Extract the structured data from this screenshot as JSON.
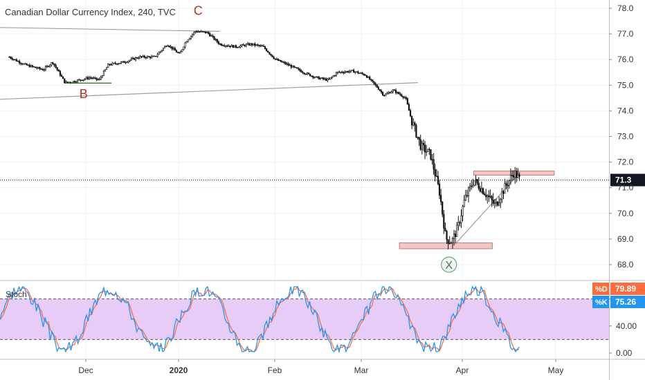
{
  "header": {
    "title": "Canadian Dollar Currency Index, 240, TVC"
  },
  "chart_data": {
    "type": "candlestick",
    "title": "Canadian Dollar Currency Index, 240, TVC",
    "x_ticks": [
      "Dec",
      "2020",
      "Feb",
      "Mar",
      "Apr",
      "May"
    ],
    "price_panel": {
      "y_ticks": [
        "78.0",
        "77.0",
        "76.0",
        "75.0",
        "74.0",
        "73.0",
        "72.0",
        "71.0",
        "70.0",
        "69.0",
        "68.0"
      ],
      "ylim": [
        67.6,
        78.3
      ],
      "last_price": "71.3",
      "price_path": [
        [
          "2019-11-01",
          76.1
        ],
        [
          "2019-11-06",
          75.8
        ],
        [
          "2019-11-12",
          75.6
        ],
        [
          "2019-11-15",
          75.9
        ],
        [
          "2019-11-19",
          75.1
        ],
        [
          "2019-11-22",
          75.15
        ],
        [
          "2019-11-27",
          75.3
        ],
        [
          "2019-11-30",
          75.2
        ],
        [
          "2019-12-03",
          75.8
        ],
        [
          "2019-12-08",
          75.9
        ],
        [
          "2019-12-13",
          76.1
        ],
        [
          "2019-12-18",
          76.1
        ],
        [
          "2019-12-22",
          76.6
        ],
        [
          "2019-12-26",
          76.2
        ],
        [
          "2019-12-28",
          76.7
        ],
        [
          "2019-12-31",
          77.1
        ],
        [
          "2020-01-04",
          77.05
        ],
        [
          "2020-01-08",
          76.6
        ],
        [
          "2020-01-13",
          76.5
        ],
        [
          "2020-01-18",
          76.6
        ],
        [
          "2020-01-22",
          76.5
        ],
        [
          "2020-01-26",
          76.0
        ],
        [
          "2020-01-30",
          75.8
        ],
        [
          "2020-02-04",
          75.5
        ],
        [
          "2020-02-08",
          75.3
        ],
        [
          "2020-02-12",
          75.2
        ],
        [
          "2020-02-15",
          75.5
        ],
        [
          "2020-02-20",
          75.55
        ],
        [
          "2020-02-24",
          75.4
        ],
        [
          "2020-02-28",
          74.9
        ],
        [
          "2020-03-01",
          74.6
        ],
        [
          "2020-03-04",
          74.8
        ],
        [
          "2020-03-08",
          74.5
        ],
        [
          "2020-03-10",
          73.6
        ],
        [
          "2020-03-13",
          72.6
        ],
        [
          "2020-03-16",
          72.3
        ],
        [
          "2020-03-19",
          70.8
        ],
        [
          "2020-03-21",
          69.0
        ],
        [
          "2020-03-23",
          68.9
        ],
        [
          "2020-03-25",
          69.5
        ],
        [
          "2020-03-27",
          70.5
        ],
        [
          "2020-03-30",
          71.3
        ],
        [
          "2020-04-02",
          70.9
        ],
        [
          "2020-04-06",
          70.3
        ],
        [
          "2020-04-09",
          71.0
        ],
        [
          "2020-04-12",
          71.6
        ],
        [
          "2020-04-14",
          71.3
        ]
      ],
      "annotations": [
        {
          "label": "C",
          "date": "2020-01-01",
          "price": 77.75
        },
        {
          "label": "B",
          "date": "2019-11-25",
          "price": 74.5
        },
        {
          "label": "X",
          "date": "2020-03-22",
          "price": 68.0
        }
      ],
      "trend_lines": [
        {
          "from": [
            "2019-10-29",
            77.25
          ],
          "to": [
            "2020-01-08",
            77.1
          ]
        },
        {
          "from": [
            "2019-10-29",
            74.45
          ],
          "to": [
            "2020-03-12",
            75.1
          ]
        },
        {
          "from": [
            "2020-03-24",
            68.8
          ],
          "to": [
            "2020-04-14",
            71.6
          ]
        }
      ],
      "zones": [
        {
          "from": "2020-03-06",
          "to": "2020-04-05",
          "low": 68.62,
          "high": 68.85
        },
        {
          "from": "2020-03-30",
          "to": "2020-04-25",
          "low": 71.53,
          "high": 71.65
        }
      ]
    },
    "stoch_panel": {
      "label": "Stoch",
      "y_ticks": [
        "80.00",
        "40.00",
        "0.00"
      ],
      "ylim": [
        -8,
        108
      ],
      "band": [
        20,
        80
      ],
      "d_label": "%D",
      "d_value": "79.89",
      "k_label": "%K",
      "k_value": "75.26"
    },
    "colors": {
      "candle": "#111111",
      "stoch_k": "#2196f3",
      "stoch_d": "#ff6d3c",
      "stoch_band": "#e6ccf7",
      "zone_fill": "#f3c6c6",
      "zone_stroke": "#c27b7b",
      "annotation": "#b5361c"
    }
  }
}
